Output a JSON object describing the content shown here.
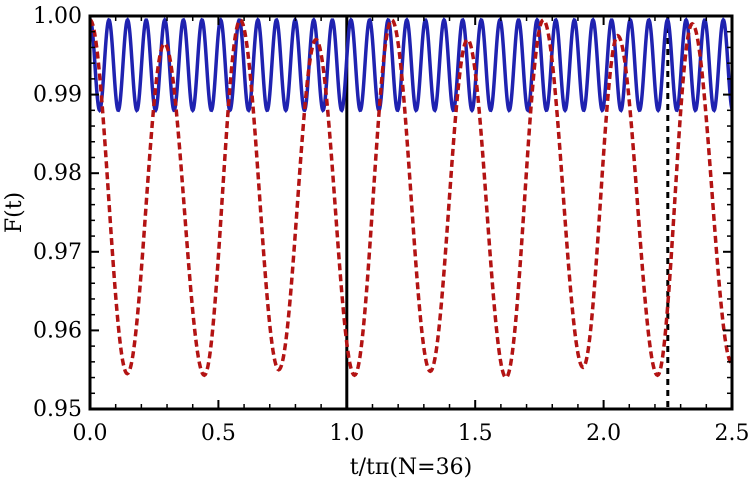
{
  "chart_data": {
    "type": "line",
    "title": "",
    "xlabel": "t/tπ(N=36)",
    "ylabel": "F(t)",
    "xlim": [
      0,
      2.5
    ],
    "ylim": [
      0.95,
      1.0
    ],
    "grid": false,
    "legend": "none",
    "x_ticks": [
      0.0,
      0.5,
      1.0,
      1.5,
      2.0,
      2.5
    ],
    "x_tick_labels": [
      "0.0",
      "0.5",
      "1.0",
      "1.5",
      "2.0",
      "2.5"
    ],
    "y_ticks": [
      0.95,
      0.96,
      0.97,
      0.98,
      0.99,
      1.0
    ],
    "y_tick_labels": [
      "0.95",
      "0.96",
      "0.97",
      "0.98",
      "0.99",
      "1.00"
    ],
    "series": [
      {
        "style": "solid",
        "color": "#1f22b0",
        "description_of_shape": "fast oscillation",
        "period": 0.0725,
        "phase_of_first_minimum": 0.0375,
        "min": 0.988,
        "max": 0.9995
      },
      {
        "style": "dashed",
        "color": "#b31313",
        "minima": [
          [
            0.145,
            0.9545
          ],
          [
            0.445,
            0.9543
          ],
          [
            0.735,
            0.955
          ],
          [
            1.03,
            0.9543
          ],
          [
            1.325,
            0.9548
          ],
          [
            1.62,
            0.954
          ],
          [
            1.92,
            0.9553
          ],
          [
            2.21,
            0.9543
          ],
          [
            2.5,
            0.9558
          ]
        ],
        "maxima": [
          [
            0.0,
            0.9995
          ],
          [
            0.29,
            0.9965
          ],
          [
            0.585,
            0.9995
          ],
          [
            0.88,
            0.997
          ],
          [
            1.175,
            0.9995
          ],
          [
            1.47,
            0.997
          ],
          [
            1.765,
            0.9995
          ],
          [
            2.055,
            0.9975
          ],
          [
            2.345,
            0.999
          ]
        ]
      }
    ],
    "reference_lines": [
      {
        "orientation": "vertical",
        "x": 1.0,
        "style": "solid",
        "color": "#000000"
      },
      {
        "orientation": "vertical",
        "x": 2.25,
        "style": "dashed",
        "color": "#000000"
      },
      {
        "orientation": "horizontal",
        "y": 1.0,
        "style": "dotted",
        "color": "#000000"
      }
    ]
  }
}
